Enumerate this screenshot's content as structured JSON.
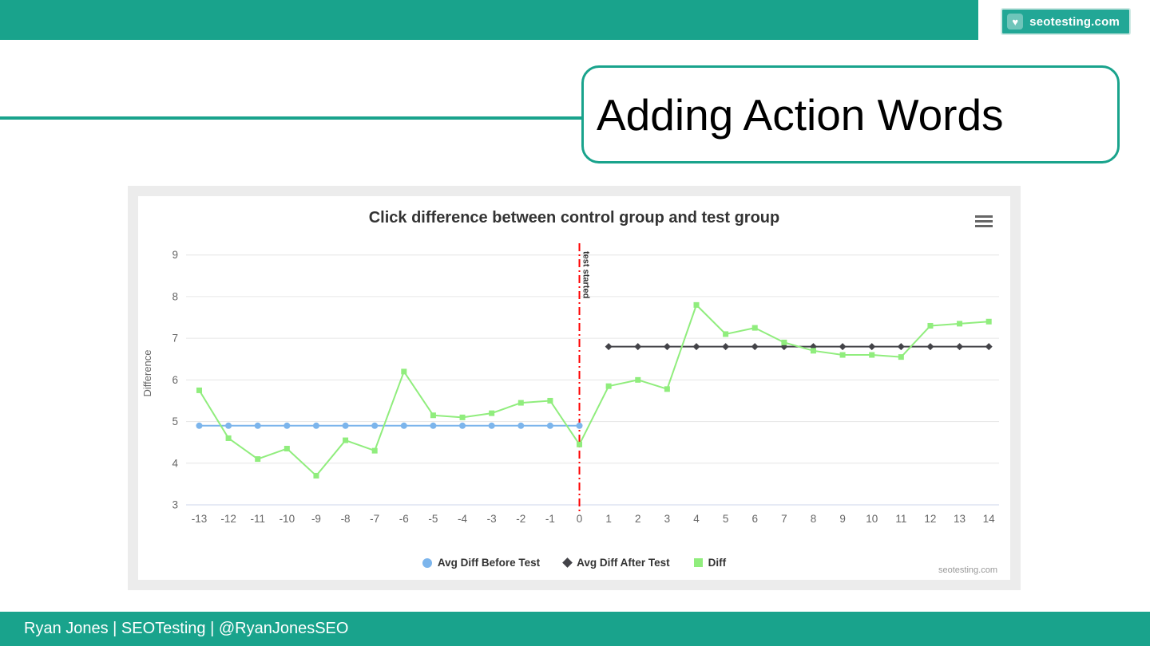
{
  "header": {
    "brand": "seotesting.com"
  },
  "title_box": {
    "title": "Adding Action Words"
  },
  "footer": {
    "credit": "Ryan Jones | SEOTesting | @RyanJonesSEO"
  },
  "colors": {
    "teal": "#19A38C",
    "series_blue": "#7cb5ec",
    "series_black": "#434348",
    "series_green": "#90ed7d",
    "plotline_red": "#ff0000",
    "grid": "#e6e6e6",
    "axis_line": "#ccd6eb"
  },
  "chart_data": {
    "type": "line",
    "title": "Click difference between control group and test group",
    "xlabel": "",
    "ylabel": "Difference",
    "grid": true,
    "legend_position": "bottom",
    "watermark": "seotesting.com",
    "xlim": [
      -13.45,
      14.35
    ],
    "ylim": [
      3,
      9.32
    ],
    "yticks": [
      3,
      4,
      5,
      6,
      7,
      8,
      9
    ],
    "xticks": [
      -13,
      -12,
      -11,
      -10,
      -9,
      -8,
      -7,
      -6,
      -5,
      -4,
      -3,
      -2,
      -1,
      0,
      1,
      2,
      3,
      4,
      5,
      6,
      7,
      8,
      9,
      10,
      11,
      12,
      13,
      14
    ],
    "annotation": {
      "label": "test started",
      "x": 0,
      "color": "#ff0000",
      "style": "dash-dot"
    },
    "series": [
      {
        "name": "Avg Diff Before Test",
        "color": "#7cb5ec",
        "marker": "circle",
        "x": [
          -13,
          -12,
          -11,
          -10,
          -9,
          -8,
          -7,
          -6,
          -5,
          -4,
          -3,
          -2,
          -1,
          0
        ],
        "y": [
          4.9,
          4.9,
          4.9,
          4.9,
          4.9,
          4.9,
          4.9,
          4.9,
          4.9,
          4.9,
          4.9,
          4.9,
          4.9,
          4.9
        ]
      },
      {
        "name": "Avg Diff After Test",
        "color": "#434348",
        "marker": "diamond",
        "x": [
          1,
          2,
          3,
          4,
          5,
          6,
          7,
          8,
          9,
          10,
          11,
          12,
          13,
          14
        ],
        "y": [
          6.8,
          6.8,
          6.8,
          6.8,
          6.8,
          6.8,
          6.8,
          6.8,
          6.8,
          6.8,
          6.8,
          6.8,
          6.8,
          6.8
        ]
      },
      {
        "name": "Diff",
        "color": "#90ed7d",
        "marker": "square",
        "x": [
          -13,
          -12,
          -11,
          -10,
          -9,
          -8,
          -7,
          -6,
          -5,
          -4,
          -3,
          -2,
          -1,
          0,
          1,
          2,
          3,
          4,
          5,
          6,
          7,
          8,
          9,
          10,
          11,
          12,
          13,
          14
        ],
        "y": [
          5.75,
          4.6,
          4.1,
          4.35,
          3.7,
          4.55,
          4.3,
          6.2,
          5.15,
          5.1,
          5.2,
          5.45,
          5.5,
          4.45,
          5.85,
          6.0,
          5.78,
          7.8,
          7.1,
          7.25,
          6.9,
          6.7,
          6.6,
          6.6,
          6.55,
          7.3,
          7.35,
          7.4
        ]
      }
    ]
  }
}
